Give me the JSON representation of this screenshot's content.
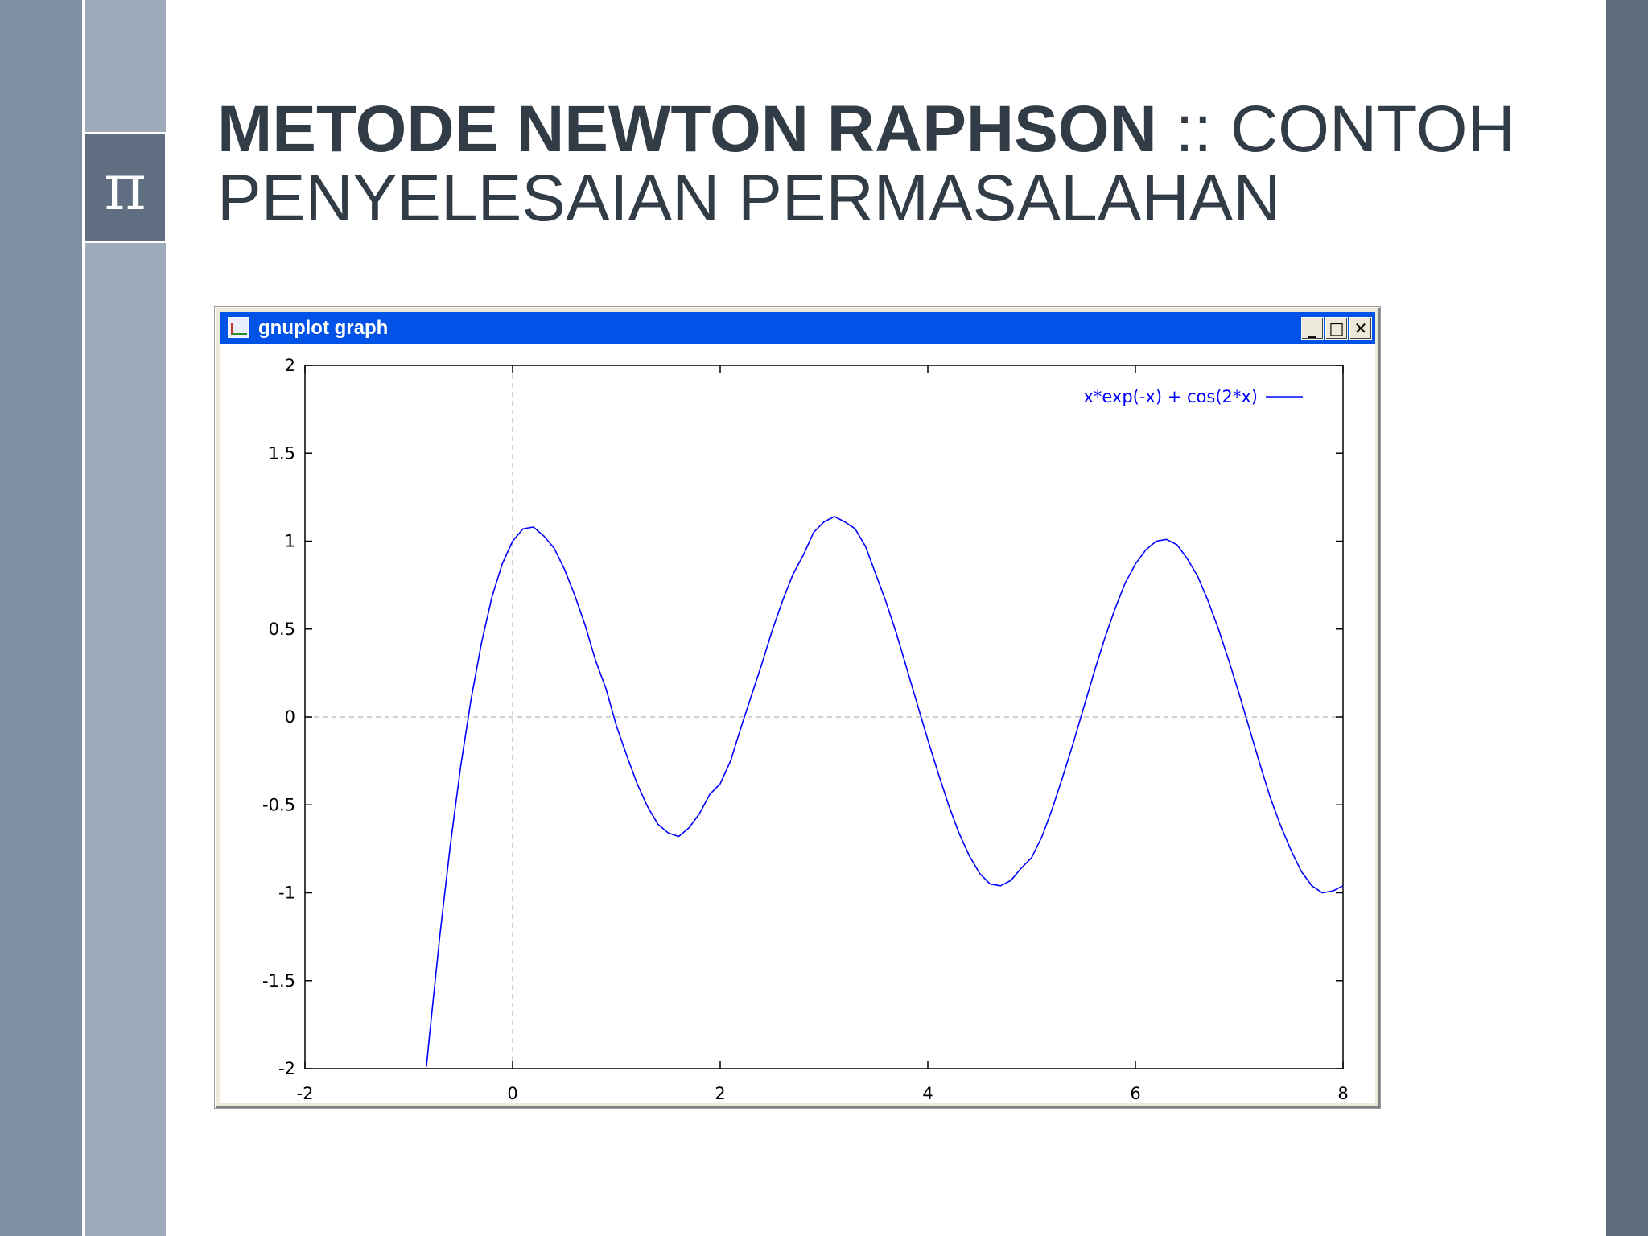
{
  "slide": {
    "title_bold": "METODE NEWTON RAPHSON",
    "title_rest_line1": ":: CONTOH",
    "title_line2": "PENYELESAIAN PERMASALAHAN",
    "logo_symbol": "π",
    "colors": {
      "title": "#323c46",
      "left_stripe": "#7d8fa1",
      "inner_stripe": "#9eabba",
      "right_stripe": "#5d6b7a",
      "logo_bg": "#5f6f81"
    }
  },
  "window": {
    "title": "gnuplot graph",
    "icon": "gnuplot-app-icon",
    "buttons": {
      "minimize": "minimize-icon",
      "maximize": "maximize-icon",
      "close": "close-icon"
    },
    "colors": {
      "titlebar": "#0053e6",
      "frame": "#ece9d8"
    }
  },
  "chart_data": {
    "type": "line",
    "title": "",
    "xlabel": "",
    "ylabel": "",
    "xlim": [
      -2,
      8
    ],
    "ylim": [
      -2,
      2
    ],
    "xticks": [
      -2,
      0,
      2,
      4,
      6,
      8
    ],
    "xtick_labels": [
      "-2",
      "0",
      "2",
      "4",
      "6",
      "8"
    ],
    "yticks": [
      2,
      1.5,
      1,
      0.5,
      0,
      -0.5,
      -1,
      -1.5,
      -2
    ],
    "ytick_labels": [
      "2",
      "1.5",
      "1",
      "0.5",
      "0",
      "-0.5",
      "-1",
      "-1.5",
      "-2"
    ],
    "zero_axes": true,
    "legend_position": "top-right",
    "series": [
      {
        "name": "x*exp(-x) + cos(2*x)",
        "color": "#0000ff",
        "x": [
          -0.83,
          -0.8,
          -0.7,
          -0.6,
          -0.5,
          -0.4,
          -0.3,
          -0.2,
          -0.1,
          0,
          0.1,
          0.2,
          0.3,
          0.4,
          0.5,
          0.6,
          0.7,
          0.8,
          0.9,
          1.0,
          1.1,
          1.2,
          1.3,
          1.4,
          1.5,
          1.6,
          1.7,
          1.8,
          1.9,
          2.0,
          2.1,
          2.2,
          2.3,
          2.4,
          2.5,
          2.6,
          2.7,
          2.8,
          2.9,
          3.0,
          3.1,
          3.2,
          3.3,
          3.4,
          3.5,
          3.6,
          3.7,
          3.8,
          3.9,
          4.0,
          4.1,
          4.2,
          4.3,
          4.4,
          4.5,
          4.6,
          4.7,
          4.8,
          4.9,
          5.0,
          5.1,
          5.2,
          5.3,
          5.4,
          5.5,
          5.6,
          5.7,
          5.8,
          5.9,
          6.0,
          6.1,
          6.2,
          6.3,
          6.4,
          6.5,
          6.6,
          6.7,
          6.8,
          6.9,
          7.0,
          7.1,
          7.2,
          7.3,
          7.4,
          7.5,
          7.6,
          7.7,
          7.8,
          7.9,
          8.0
        ],
        "y": [
          -1.99,
          -1.81,
          -1.24,
          -0.73,
          -0.28,
          0.1,
          0.42,
          0.68,
          0.87,
          1.0,
          1.07,
          1.08,
          1.03,
          0.96,
          0.84,
          0.69,
          0.52,
          0.32,
          0.16,
          -0.05,
          -0.22,
          -0.38,
          -0.51,
          -0.61,
          -0.66,
          -0.68,
          -0.63,
          -0.55,
          -0.44,
          -0.38,
          -0.25,
          -0.06,
          0.12,
          0.3,
          0.49,
          0.66,
          0.81,
          0.92,
          1.05,
          1.11,
          1.14,
          1.11,
          1.07,
          0.97,
          0.81,
          0.65,
          0.47,
          0.27,
          0.07,
          -0.13,
          -0.32,
          -0.5,
          -0.66,
          -0.79,
          -0.89,
          -0.95,
          -0.96,
          -0.93,
          -0.86,
          -0.8,
          -0.68,
          -0.52,
          -0.34,
          -0.15,
          0.05,
          0.25,
          0.44,
          0.61,
          0.76,
          0.87,
          0.95,
          1.0,
          1.01,
          0.98,
          0.9,
          0.8,
          0.66,
          0.5,
          0.32,
          0.13,
          -0.07,
          -0.27,
          -0.46,
          -0.62,
          -0.76,
          -0.88,
          -0.96,
          -1.0,
          -0.99,
          -0.96
        ]
      }
    ]
  }
}
